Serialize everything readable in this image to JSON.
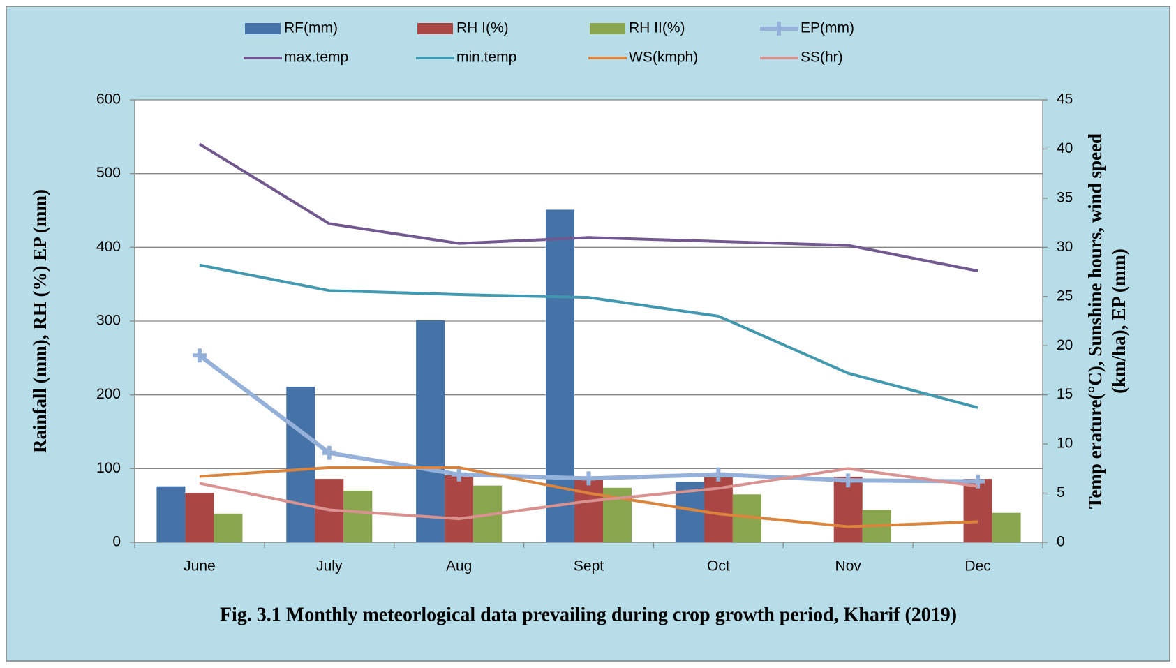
{
  "chart_data": {
    "type": "bar",
    "title": "Fig. 3.1 Monthly meteorlogical  data prevailing during crop growth period, Kharif (2019)",
    "y_label": "Rainfall (mm), RH (%) EP (mm)",
    "y2_label": [
      "Temp erature(°C), Sunshine hours, wind speed",
      "(km/ha), EP (mm)"
    ],
    "categories": [
      "June",
      "July",
      "Aug",
      "Sept",
      "Oct",
      "Nov",
      "Dec"
    ],
    "ylim": [
      0,
      600
    ],
    "yticks": [
      0,
      100,
      200,
      300,
      400,
      500,
      600
    ],
    "y2lim": [
      0,
      45
    ],
    "y2ticks": [
      0,
      5,
      10,
      15,
      20,
      25,
      30,
      35,
      40,
      45
    ],
    "grid": true,
    "series": [
      {
        "name": "RF(mm)",
        "type": "bar",
        "color": "#4572a7",
        "values": [
          76,
          211,
          301,
          451,
          82,
          0,
          0
        ]
      },
      {
        "name": "RH I(%)",
        "type": "bar",
        "color": "#aa4643",
        "values": [
          67,
          86,
          91,
          86,
          88,
          89,
          86
        ]
      },
      {
        "name": "RH II(%)",
        "type": "bar",
        "color": "#89a54e",
        "values": [
          39,
          70,
          77,
          74,
          65,
          44,
          40
        ]
      },
      {
        "name": "EP(mm)",
        "type": "line",
        "marker": "plus",
        "axis": "y2",
        "color": "#95b0d9",
        "values": [
          19.0,
          9.1,
          6.9,
          6.5,
          6.9,
          6.3,
          6.2
        ]
      },
      {
        "name": "max.temp",
        "type": "line",
        "axis": "y2",
        "color": "#71588f",
        "values": [
          40.5,
          32.4,
          30.4,
          31.0,
          30.6,
          30.2,
          27.6
        ]
      },
      {
        "name": "min.temp",
        "type": "line",
        "axis": "y2",
        "color": "#4198af",
        "values": [
          28.2,
          25.6,
          25.2,
          24.9,
          23.0,
          17.2,
          13.7
        ]
      },
      {
        "name": "WS(kmph)",
        "type": "line",
        "axis": "y2",
        "color": "#db843d",
        "values": [
          6.7,
          7.6,
          7.6,
          5.0,
          2.9,
          1.6,
          2.1
        ]
      },
      {
        "name": "SS(hr)",
        "type": "line",
        "axis": "y2",
        "color": "#d9928f",
        "values": [
          6.0,
          3.3,
          2.4,
          4.2,
          5.5,
          7.5,
          5.7
        ]
      }
    ]
  }
}
